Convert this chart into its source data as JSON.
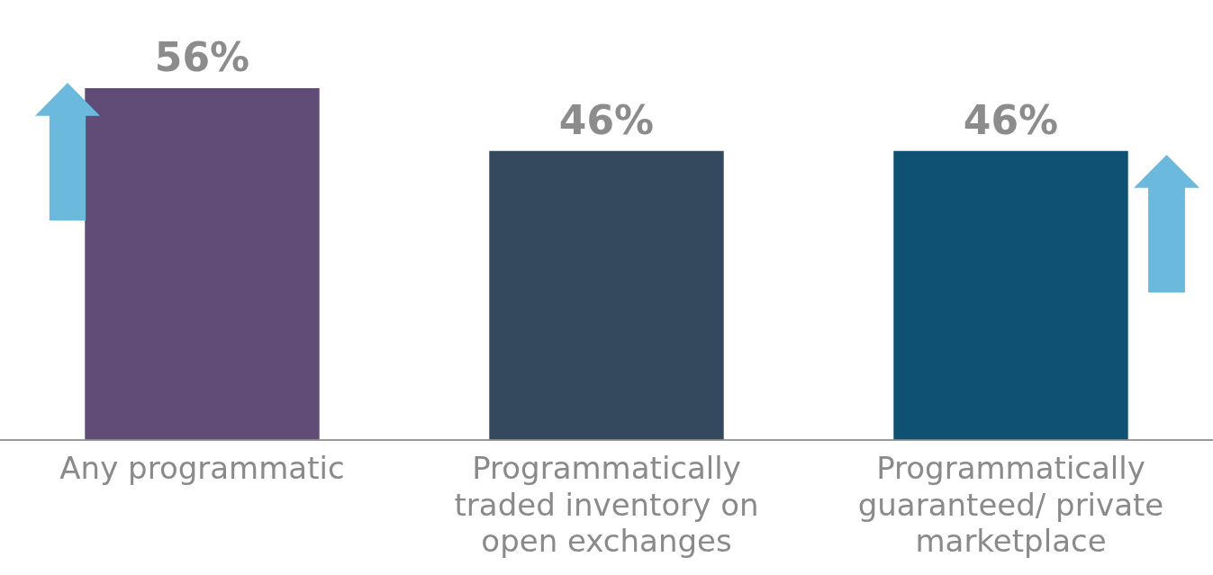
{
  "chart_data": {
    "type": "bar",
    "categories": [
      "Any programmatic",
      "Programmatically traded inventory on open exchanges",
      "Programmatically guaranteed/ private marketplace"
    ],
    "colors": [
      "#614c78",
      "#34495e",
      "#0f5173"
    ],
    "values": [
      56,
      46,
      46
    ],
    "value_labels": [
      "56%",
      "46%",
      "46%"
    ],
    "grid": false,
    "legend": false,
    "tick_labels": "x"
  }
}
